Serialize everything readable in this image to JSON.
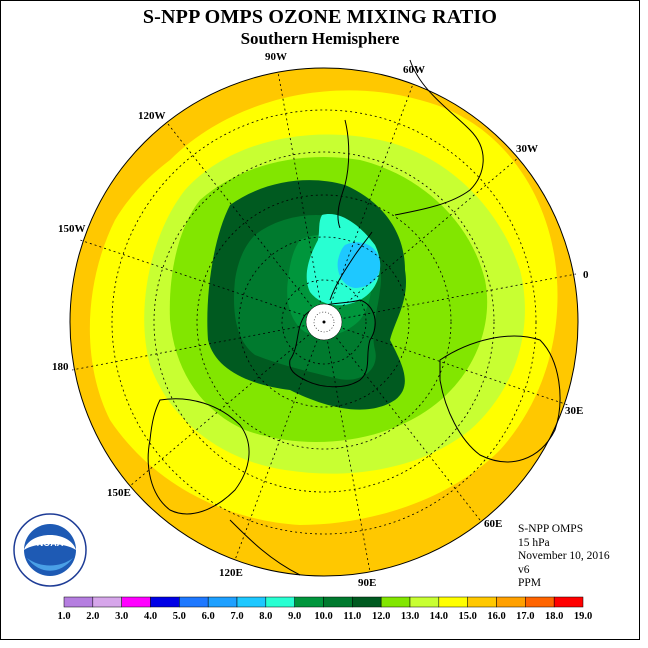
{
  "title": "S-NPP OMPS OZONE MIXING RATIO",
  "subtitle": "Southern Hemisphere",
  "longitude_labels": [
    {
      "text": "90W"
    },
    {
      "text": "60W"
    },
    {
      "text": "30W"
    },
    {
      "text": "0"
    },
    {
      "text": "30E"
    },
    {
      "text": "60E"
    },
    {
      "text": "90E"
    },
    {
      "text": "120E"
    },
    {
      "text": "150E"
    },
    {
      "text": "180"
    },
    {
      "text": "150W"
    },
    {
      "text": "120W"
    }
  ],
  "info": {
    "instrument": "S-NPP OMPS",
    "level": "15 hPa",
    "date": "November 10, 2016",
    "version": "v6",
    "units": "PPM"
  },
  "logo": {
    "text": "NOAA",
    "ring_text": "NATIONAL OCEANIC AND ATMOSPHERIC ADMINISTRATION  U.S. DEPARTMENT OF COMMERCE"
  },
  "colorbar": {
    "labels": [
      "1.0",
      "2.0",
      "3.0",
      "4.0",
      "5.0",
      "6.0",
      "7.0",
      "8.0",
      "9.0",
      "10.0",
      "11.0",
      "12.0",
      "13.0",
      "14.0",
      "15.0",
      "16.0",
      "17.0",
      "18.0",
      "19.0"
    ],
    "colors": [
      "#b57ee0",
      "#d6a6ea",
      "#ff00ff",
      "#0000e6",
      "#1e78ff",
      "#1ea0ff",
      "#1ec8ff",
      "#28ffd2",
      "#00963c",
      "#007a2e",
      "#005a20",
      "#82e600",
      "#c8ff32",
      "#ffff00",
      "#ffc800",
      "#ffa000",
      "#ff6400",
      "#ff0000",
      "#8b4513"
    ]
  }
}
